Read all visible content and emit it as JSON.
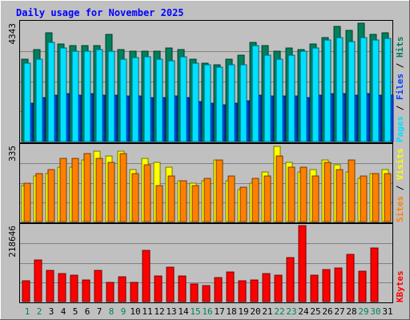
{
  "title": "Daily usage for November 2025",
  "colors": {
    "background": "#C0C0C0",
    "title": "#0000FF",
    "hits": "#00805C",
    "files": "#0040FF",
    "pages": "#00E0FF",
    "visits": "#FFFF00",
    "sites": "#FF8000",
    "kbytes": "#FF0000",
    "weekend": "#00805C",
    "weekday": "#000000",
    "gridline": "#808080"
  },
  "chart_data": [
    {
      "type": "bar",
      "panel": "hits-files-pages",
      "axis_label": "4343",
      "ylim": [
        0,
        4343
      ],
      "legend": [
        "Pages",
        "Files",
        "Hits"
      ],
      "categories": [
        "1",
        "2",
        "3",
        "4",
        "5",
        "6",
        "7",
        "8",
        "9",
        "10",
        "11",
        "12",
        "13",
        "14",
        "15",
        "16",
        "17",
        "18",
        "19",
        "20",
        "21",
        "22",
        "23",
        "24",
        "25",
        "26",
        "27",
        "28",
        "29",
        "30",
        "31"
      ],
      "series": [
        {
          "name": "Hits",
          "values": [
            3000,
            3350,
            3950,
            3550,
            3500,
            3500,
            3500,
            3900,
            3350,
            3300,
            3300,
            3300,
            3400,
            3350,
            3000,
            2850,
            2800,
            3000,
            3150,
            3600,
            3500,
            3300,
            3400,
            3350,
            3550,
            3800,
            4200,
            4050,
            4300,
            3900,
            3950
          ]
        },
        {
          "name": "Files",
          "values": [
            1400,
            1600,
            1700,
            1750,
            1700,
            1750,
            1700,
            1700,
            1650,
            1650,
            1600,
            1600,
            1650,
            1600,
            1450,
            1400,
            1350,
            1400,
            1500,
            1700,
            1650,
            1650,
            1650,
            1600,
            1700,
            1750,
            1750,
            1700,
            1750,
            1700,
            1700
          ]
        },
        {
          "name": "Pages",
          "values": [
            2850,
            3000,
            3600,
            3400,
            3300,
            3300,
            3350,
            3300,
            3000,
            3050,
            3100,
            3000,
            2950,
            3100,
            2850,
            2800,
            2700,
            2800,
            2800,
            3500,
            3150,
            3000,
            3150,
            3300,
            3400,
            3700,
            3800,
            3650,
            3800,
            3700,
            3750
          ]
        }
      ]
    },
    {
      "type": "bar",
      "panel": "visits-sites",
      "axis_label": "335",
      "ylim": [
        0,
        335
      ],
      "legend": [
        "Sites",
        "Visits"
      ],
      "categories": [
        "1",
        "2",
        "3",
        "4",
        "5",
        "6",
        "7",
        "8",
        "9",
        "10",
        "11",
        "12",
        "13",
        "14",
        "15",
        "16",
        "17",
        "18",
        "19",
        "20",
        "21",
        "22",
        "23",
        "24",
        "25",
        "26",
        "27",
        "28",
        "29",
        "30",
        "31"
      ],
      "series": [
        {
          "name": "Visits",
          "values": [
            160,
            200,
            210,
            240,
            240,
            270,
            310,
            290,
            310,
            230,
            280,
            260,
            240,
            180,
            170,
            180,
            270,
            180,
            140,
            170,
            220,
            330,
            260,
            220,
            230,
            270,
            250,
            220,
            190,
            210,
            230
          ]
        },
        {
          "name": "Sites",
          "values": [
            170,
            210,
            230,
            280,
            280,
            300,
            280,
            260,
            300,
            210,
            250,
            160,
            200,
            180,
            160,
            190,
            270,
            200,
            150,
            190,
            200,
            290,
            240,
            240,
            200,
            260,
            230,
            270,
            200,
            210,
            210
          ]
        }
      ]
    },
    {
      "type": "bar",
      "panel": "kbytes",
      "axis_label": "218646",
      "ylim": [
        0,
        218646
      ],
      "legend": [
        "KBytes"
      ],
      "categories": [
        "1",
        "2",
        "3",
        "4",
        "5",
        "6",
        "7",
        "8",
        "9",
        "10",
        "11",
        "12",
        "13",
        "14",
        "15",
        "16",
        "17",
        "18",
        "19",
        "20",
        "21",
        "22",
        "23",
        "24",
        "25",
        "26",
        "27",
        "28",
        "29",
        "30",
        "31"
      ],
      "series": [
        {
          "name": "KBytes",
          "values": [
            60000,
            120000,
            90000,
            80000,
            75000,
            62000,
            90000,
            56000,
            72000,
            56000,
            148000,
            73000,
            100000,
            73000,
            50000,
            47000,
            70000,
            85000,
            60000,
            62000,
            80000,
            77000,
            127000,
            218646,
            76000,
            92000,
            97000,
            135000,
            87000,
            155000,
            0
          ]
        }
      ]
    }
  ],
  "weekend_days": [
    "1",
    "2",
    "8",
    "9",
    "15",
    "16",
    "22",
    "23",
    "29",
    "30"
  ]
}
